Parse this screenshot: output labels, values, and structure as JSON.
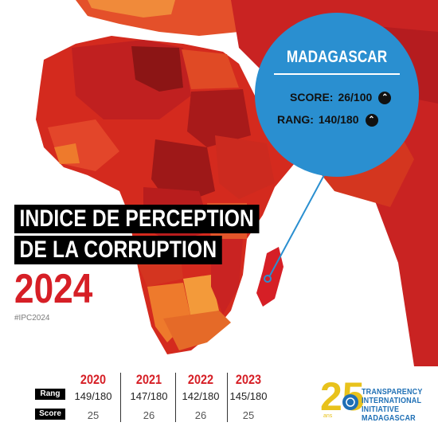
{
  "title": {
    "line1": "INDICE DE PERCEPTION",
    "line2": "DE LA CORRUPTION",
    "year": "2024",
    "hashtag": "#IPC2024"
  },
  "callout": {
    "country": "MADAGASCAR",
    "score_label": "SCORE:",
    "score_value": "26/100",
    "rank_label": "RANG:",
    "rank_value": "140/180",
    "colors": {
      "circle": "#2a8fd0"
    },
    "icons": [
      "chevron-up-icon",
      "chevron-up-icon"
    ]
  },
  "history": {
    "row_labels": {
      "rank": "Rang",
      "score": "Score"
    },
    "years": [
      {
        "year": "2020",
        "rank": "149/180",
        "score": "25"
      },
      {
        "year": "2021",
        "rank": "147/180",
        "score": "26"
      },
      {
        "year": "2022",
        "rank": "142/180",
        "score": "26"
      },
      {
        "year": "2023",
        "rank": "145/180",
        "score": "25"
      }
    ]
  },
  "logo": {
    "numeral": "25",
    "suffix": "ans",
    "lines": [
      "TRANSPARENCY",
      "INTERNATIONAL",
      "INITIATIVE",
      "MADAGASCAR"
    ]
  },
  "colors": {
    "accent_red": "#d61f26",
    "map_dark": "#b01820",
    "map_orange": "#e87722",
    "logo_gold": "#e8c21c",
    "logo_blue": "#1e6fb5"
  }
}
